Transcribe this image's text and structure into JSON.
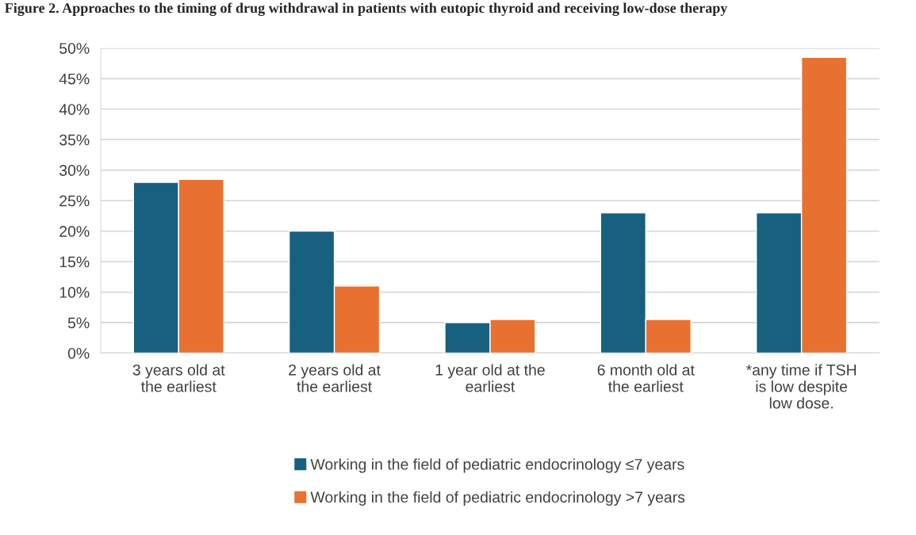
{
  "chart_data": {
    "type": "bar",
    "title": "Figure 2. Approaches to the timing of drug withdrawal in patients with eutopic thyroid and receiving low-dose therapy",
    "categories": [
      "3 years old at\nthe earliest",
      "2 years old at\nthe earliest",
      "1 year old at the\nearliest",
      "6 month old at\nthe earliest",
      "*any time if TSH\nis low despite\nlow dose."
    ],
    "series": [
      {
        "name": "Working in the field of pediatric endocrinology ≤7 years",
        "color": "#17607f",
        "values": [
          28,
          20,
          5,
          23,
          23
        ]
      },
      {
        "name": "Working in the field of pediatric endocrinology >7 years",
        "color": "#e87132",
        "values": [
          28.5,
          11,
          5.5,
          5.5,
          48.5
        ]
      }
    ],
    "ylim": [
      0,
      50
    ],
    "yticks": [
      {
        "value": 0,
        "label": "0%"
      },
      {
        "value": 5,
        "label": "5%"
      },
      {
        "value": 10,
        "label": "10%"
      },
      {
        "value": 15,
        "label": "15%"
      },
      {
        "value": 20,
        "label": "20%"
      },
      {
        "value": 25,
        "label": "25%"
      },
      {
        "value": 30,
        "label": "30%"
      },
      {
        "value": 35,
        "label": "35%"
      },
      {
        "value": 40,
        "label": "40%"
      },
      {
        "value": 45,
        "label": "45%"
      },
      {
        "value": 50,
        "label": "50%"
      }
    ],
    "grid": "y",
    "legend": "bottom"
  }
}
